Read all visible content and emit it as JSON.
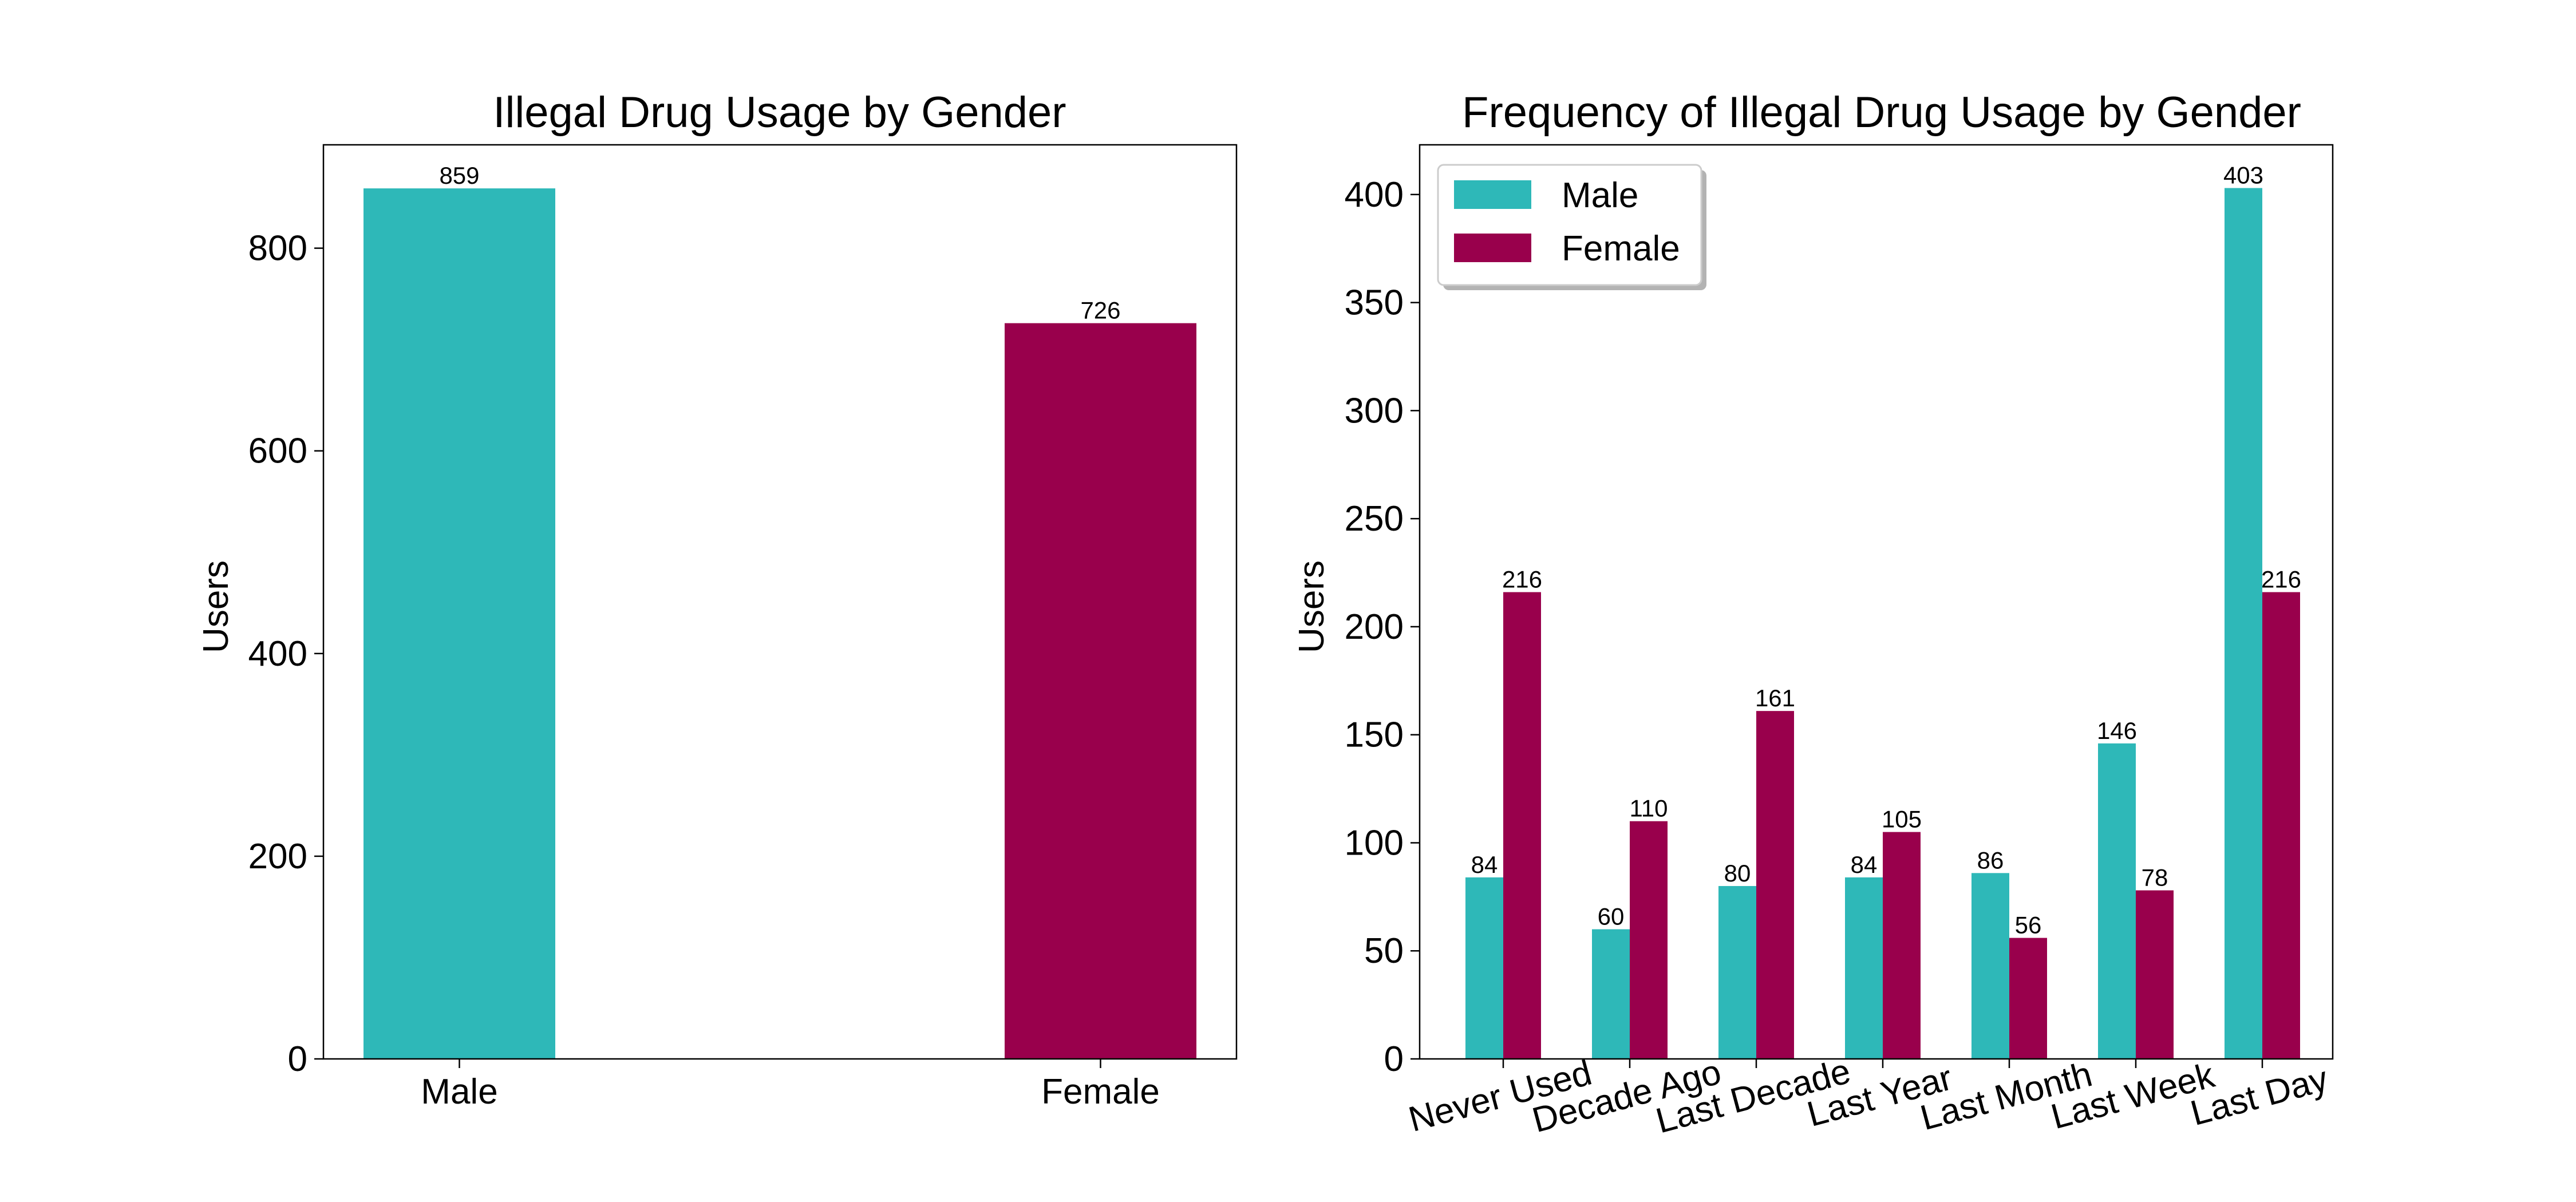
{
  "colors": {
    "male": "#2eb8b8",
    "female": "#99004c"
  },
  "chart_data": [
    {
      "type": "bar",
      "title": "Illegal Drug Usage by Gender",
      "xlabel": "",
      "ylabel": "Users",
      "categories": [
        "Male",
        "Female"
      ],
      "values": [
        859,
        726
      ],
      "data_labels": [
        "859",
        "726"
      ],
      "bar_colors": [
        "#2eb8b8",
        "#99004c"
      ],
      "ylim": [
        0,
        902
      ],
      "yticks": [
        0,
        200,
        400,
        600,
        800
      ],
      "ytick_labels": [
        "0",
        "200",
        "400",
        "600",
        "800"
      ],
      "grid": false
    },
    {
      "type": "bar",
      "title": "Frequency of Illegal Drug Usage by Gender",
      "xlabel": "",
      "ylabel": "Users",
      "categories": [
        "Never Used",
        "Decade Ago",
        "Last Decade",
        "Last Year",
        "Last Month",
        "Last Week",
        "Last Day"
      ],
      "series": [
        {
          "name": "Male",
          "color": "#2eb8b8",
          "values": [
            84,
            60,
            80,
            84,
            86,
            146,
            403
          ],
          "data_labels": [
            "84",
            "60",
            "80",
            "84",
            "86",
            "146",
            "403"
          ]
        },
        {
          "name": "Female",
          "color": "#99004c",
          "values": [
            216,
            110,
            161,
            105,
            56,
            78,
            216
          ],
          "data_labels": [
            "216",
            "110",
            "161",
            "105",
            "56",
            "78",
            "216"
          ]
        }
      ],
      "ylim": [
        0,
        423
      ],
      "yticks": [
        0,
        50,
        100,
        150,
        200,
        250,
        300,
        350,
        400
      ],
      "ytick_labels": [
        "0",
        "50",
        "100",
        "150",
        "200",
        "250",
        "300",
        "350",
        "400"
      ],
      "legend": "top-left",
      "xtick_rotation": -15,
      "grid": false
    }
  ]
}
